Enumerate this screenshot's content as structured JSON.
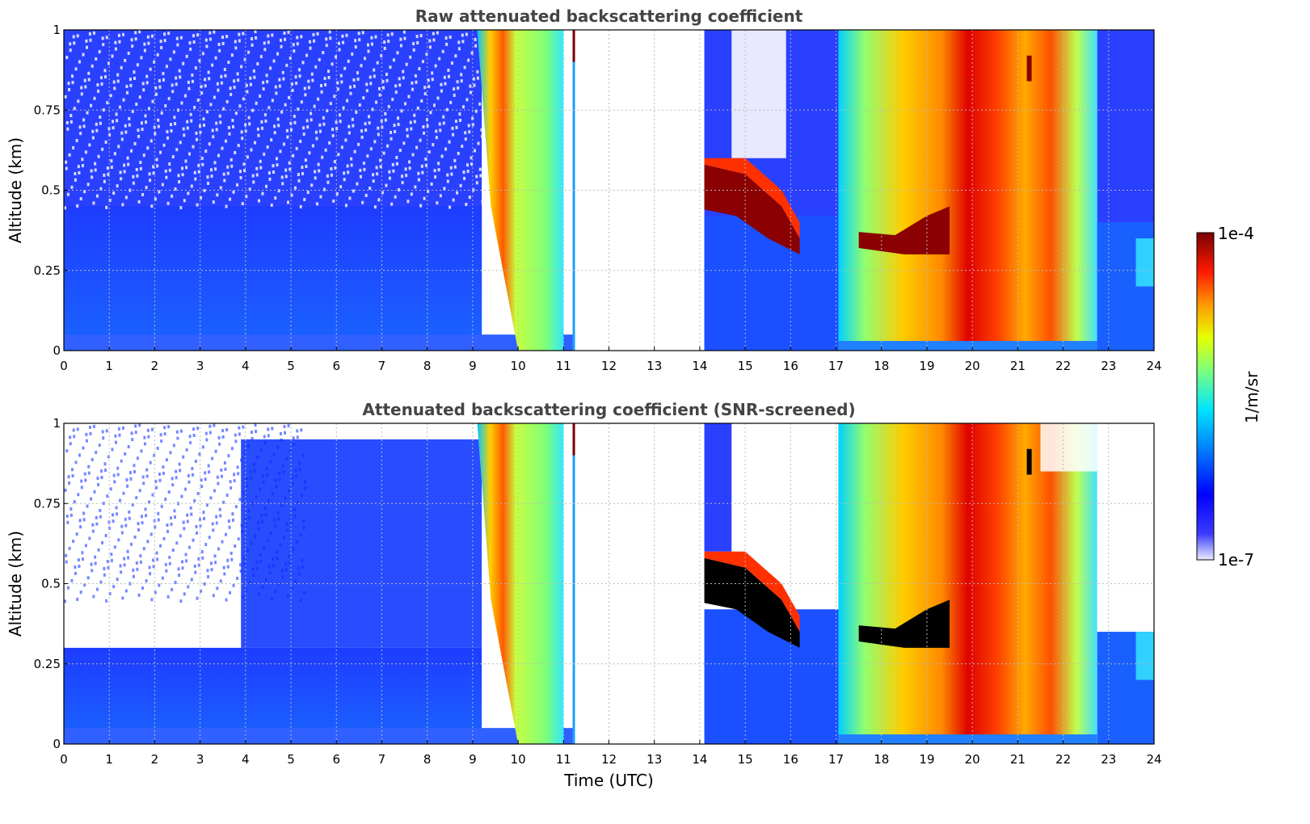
{
  "chart_data": [
    {
      "type": "heatmap",
      "title": "Raw attenuated backscattering coefficient",
      "xlabel": "",
      "ylabel": "Altitude (km)",
      "xlim": [
        0,
        24
      ],
      "ylim": [
        0,
        1
      ],
      "xticks": [
        "0",
        "1",
        "2",
        "3",
        "4",
        "5",
        "6",
        "7",
        "8",
        "9",
        "10",
        "11",
        "12",
        "13",
        "14",
        "15",
        "16",
        "17",
        "18",
        "19",
        "20",
        "21",
        "22",
        "23",
        "24"
      ],
      "yticks": [
        "0",
        "0.25",
        "0.5",
        "0.75",
        "1"
      ],
      "grid": true,
      "colorbar": {
        "min": "1e-7",
        "max": "1e-4",
        "label": "1/m/sr",
        "scale": "log"
      },
      "features": [
        {
          "feature": "no-data gap",
          "x": [
            11.25,
            14.1
          ]
        },
        {
          "feature": "low-level cloud layer",
          "x": [
            14.1,
            16.2
          ],
          "y": [
            0.3,
            0.55
          ]
        },
        {
          "feature": "cloud layer",
          "x": [
            17.5,
            19.5
          ],
          "y": [
            0.3,
            0.4
          ]
        },
        {
          "feature": "precipitation / high backscatter",
          "x": [
            9.2,
            11.0
          ]
        },
        {
          "feature": "precipitation / high backscatter",
          "x": [
            17.0,
            22.7
          ]
        }
      ]
    },
    {
      "type": "heatmap",
      "title": "Attenuated backscattering coefficient (SNR-screened)",
      "xlabel": "Time (UTC)",
      "ylabel": "Altitude (km)",
      "xlim": [
        0,
        24
      ],
      "ylim": [
        0,
        1
      ],
      "xticks": [
        "0",
        "1",
        "2",
        "3",
        "4",
        "5",
        "6",
        "7",
        "8",
        "9",
        "10",
        "11",
        "12",
        "13",
        "14",
        "15",
        "16",
        "17",
        "18",
        "19",
        "20",
        "21",
        "22",
        "23",
        "24"
      ],
      "yticks": [
        "0",
        "0.25",
        "0.5",
        "0.75",
        "1"
      ],
      "grid": true,
      "colorbar": {
        "min": "1e-7",
        "max": "1e-4",
        "label": "1/m/sr",
        "scale": "log"
      },
      "features": [
        {
          "feature": "no-data gap",
          "x": [
            11.25,
            14.1
          ]
        },
        {
          "feature": "saturated layer (black)",
          "x": [
            14.1,
            16.2
          ],
          "y": [
            0.3,
            0.55
          ]
        },
        {
          "feature": "saturated layer (black)",
          "x": [
            17.5,
            19.5
          ],
          "y": [
            0.3,
            0.4
          ]
        }
      ]
    }
  ],
  "colorbar": {
    "top_label": "1e-4",
    "bottom_label": "1e-7",
    "unit_label": "1/m/sr"
  }
}
